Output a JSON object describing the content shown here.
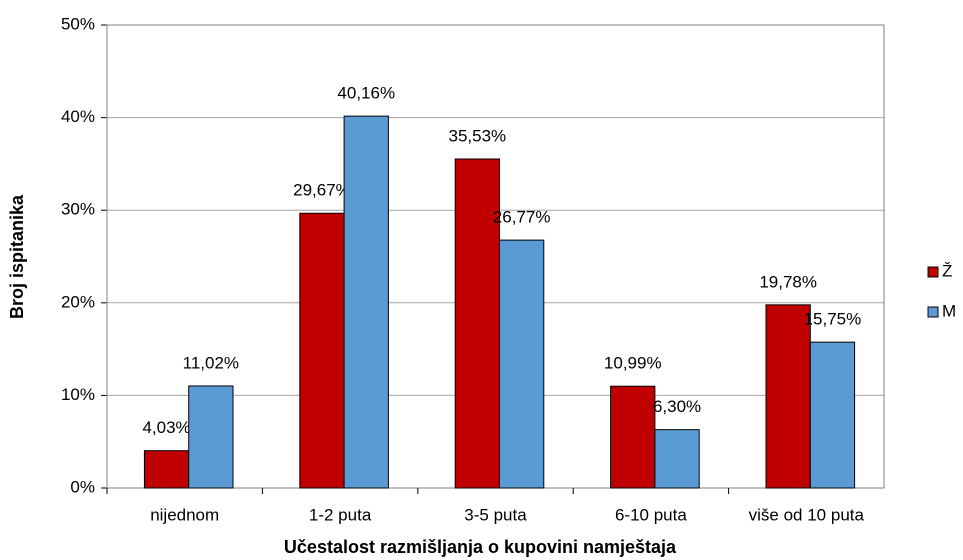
{
  "chart_data": {
    "type": "bar",
    "x_label": "Učestalost razmišljanja o kupovini namještaja",
    "y_label": "Broj ispitanika",
    "categories": [
      "nijednom",
      "1-2 puta",
      "3-5 puta",
      "6-10 puta",
      "više od 10 puta"
    ],
    "series": [
      {
        "name": "Ž",
        "color": "#c00000",
        "values": [
          4.03,
          29.67,
          35.53,
          10.99,
          19.78
        ],
        "value_labels": [
          "4,03%",
          "29,67%",
          "35,53%",
          "10,99%",
          "19,78%"
        ]
      },
      {
        "name": "M",
        "color": "#5b9bd5",
        "values": [
          11.02,
          40.16,
          26.77,
          6.3,
          15.75
        ],
        "value_labels": [
          "11,02%",
          "40,16%",
          "26,77%",
          "6,30%",
          "15,75%"
        ]
      }
    ],
    "ylim": [
      0,
      50
    ],
    "yticks": [
      {
        "value": 0,
        "label": "0%"
      },
      {
        "value": 10,
        "label": "10%"
      },
      {
        "value": 20,
        "label": "20%"
      },
      {
        "value": 30,
        "label": "30%"
      },
      {
        "value": 40,
        "label": "40%"
      },
      {
        "value": 50,
        "label": "50%"
      }
    ],
    "grid": true,
    "legend": "right"
  }
}
